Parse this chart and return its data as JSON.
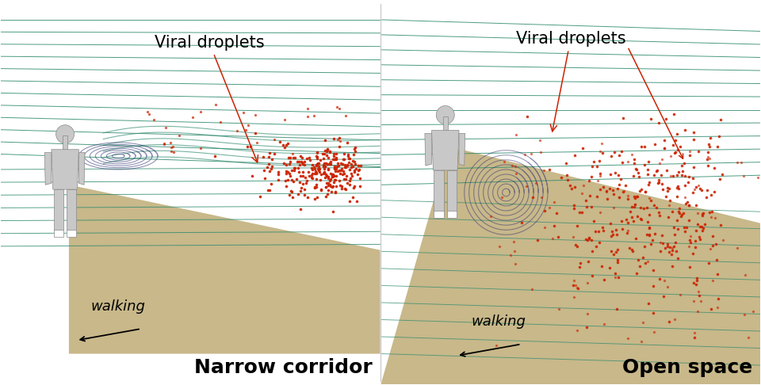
{
  "bg_color": "#ffffff",
  "panel_bg": "#ffffff",
  "floor_color": "#c8b88a",
  "figure_color": "#c8c8c8",
  "streamline_color": "#2d8a6e",
  "vortex_color": "#2a2a6e",
  "droplet_color": "#cc2200",
  "divider_color": "#cccccc",
  "left_title": "Narrow corridor",
  "right_title": "Open space",
  "label_viral": "Viral droplets",
  "label_walking": "walking",
  "title_fontsize": 18,
  "label_fontsize": 16,
  "walking_fontsize": 13,
  "annotation_fontsize": 15
}
